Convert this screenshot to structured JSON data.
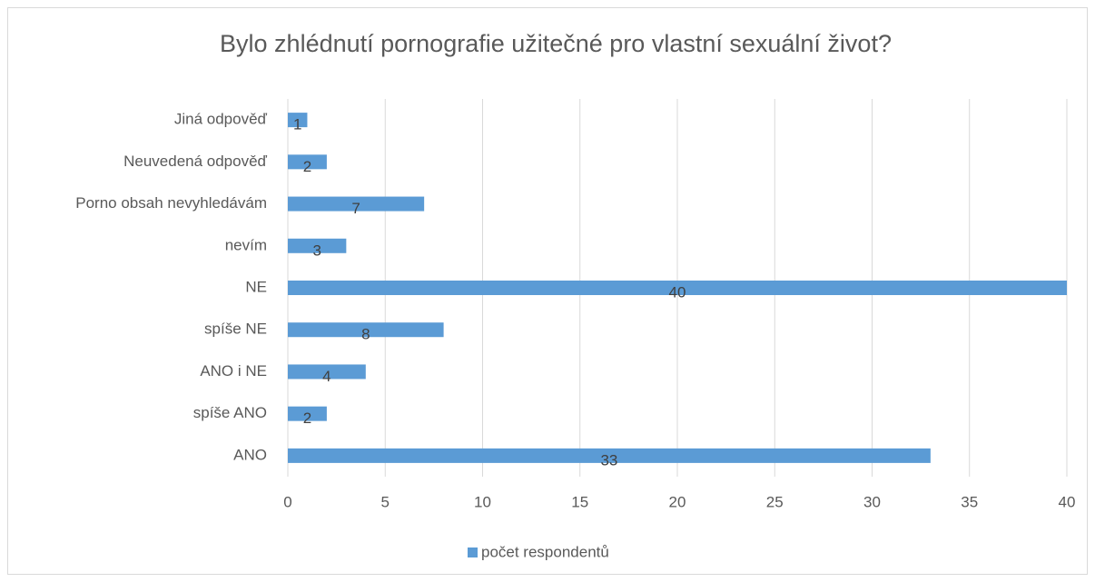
{
  "chart_data": {
    "type": "bar",
    "orientation": "horizontal",
    "title": "Bylo zhlédnutí pornografie užitečné pro vlastní sexuální život?",
    "categories": [
      "Jiná odpověď",
      "Neuvedená odpověď",
      "Porno obsah nevyhledávám",
      "nevím",
      "NE",
      "spíše NE",
      "ANO i NE",
      "spíše ANO",
      "ANO"
    ],
    "series": [
      {
        "name": "počet respondentů",
        "color": "#5b9bd5",
        "values": [
          1,
          2,
          7,
          3,
          40,
          8,
          4,
          2,
          33
        ]
      }
    ],
    "xlim": [
      0,
      40
    ],
    "xticks": [
      0,
      5,
      10,
      15,
      20,
      25,
      30,
      35,
      40
    ],
    "grid": true,
    "legend": "bottom"
  }
}
